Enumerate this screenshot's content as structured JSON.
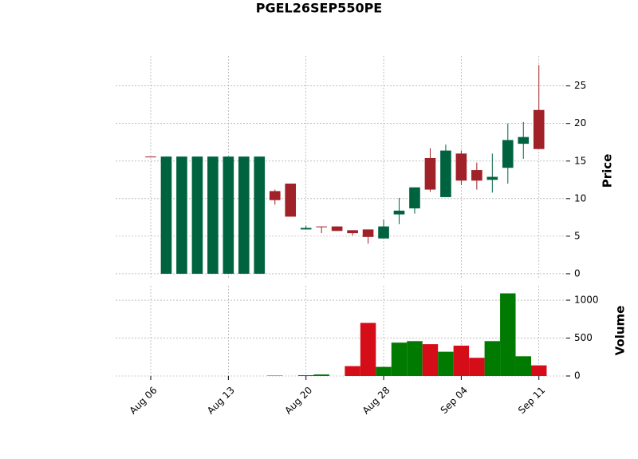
{
  "chart_data": {
    "type": "candlestick",
    "title": "PGEL26SEP550PE",
    "y_label": "Price",
    "volume_label": "Volume",
    "categories": [
      "Aug 06",
      null,
      null,
      null,
      null,
      "Aug 13",
      null,
      null,
      null,
      null,
      "Aug 20",
      null,
      null,
      null,
      null,
      "Aug 28",
      null,
      null,
      null,
      null,
      "Sep 04",
      null,
      null,
      null,
      null,
      "Sep 11"
    ],
    "open": [
      15.6,
      0,
      0,
      0,
      0,
      0,
      0,
      0,
      11.0,
      12.0,
      5.9,
      6.3,
      6.3,
      5.8,
      5.9,
      4.7,
      7.9,
      8.7,
      15.4,
      10.2,
      16.0,
      13.8,
      12.5,
      14.1,
      17.3,
      21.8
    ],
    "high": [
      15.6,
      15.6,
      15.6,
      15.6,
      15.6,
      15.6,
      15.6,
      15.6,
      11.2,
      12.0,
      6.4,
      6.3,
      6.3,
      5.8,
      5.9,
      7.2,
      10.1,
      11.5,
      16.7,
      17.2,
      16.4,
      14.8,
      16.0,
      20.0,
      20.2,
      27.8
    ],
    "low": [
      15.6,
      0,
      0,
      0,
      0,
      0,
      0,
      0,
      9.2,
      7.6,
      5.9,
      5.4,
      5.7,
      5.1,
      4.0,
      4.7,
      6.6,
      8.0,
      10.9,
      10.2,
      11.8,
      11.2,
      10.8,
      12.0,
      15.3,
      16.6
    ],
    "close": [
      15.6,
      15.6,
      15.6,
      15.6,
      15.6,
      15.6,
      15.6,
      15.6,
      9.8,
      7.6,
      6.1,
      6.2,
      5.7,
      5.4,
      4.9,
      6.3,
      8.4,
      11.5,
      11.2,
      16.4,
      12.4,
      12.4,
      12.9,
      17.8,
      18.2,
      16.6
    ],
    "up_color": "#006340",
    "down_color": "#a02128",
    "volume": [
      0,
      0,
      0,
      0,
      0,
      0,
      0,
      0,
      5,
      0,
      10,
      20,
      0,
      130,
      700,
      120,
      440,
      460,
      420,
      320,
      400,
      240,
      460,
      1090,
      260,
      140
    ],
    "volume_colors": [
      "#007a00",
      "#007a00",
      "#007a00",
      "#007a00",
      "#007a00",
      "#007a00",
      "#007a00",
      "#007a00",
      "#d50d18",
      "#007a00",
      "#d50d18",
      "#007a00",
      "#007a00",
      "#d50d18",
      "#d50d18",
      "#007a00",
      "#007a00",
      "#007a00",
      "#d50d18",
      "#007a00",
      "#d50d18",
      "#d50d18",
      "#007a00",
      "#007a00",
      "#007a00",
      "#d50d18"
    ],
    "xlim": [
      -2.26,
      26.76
    ],
    "ylim": [
      -0.75,
      29.0
    ],
    "yticks": [
      0,
      5,
      10,
      15,
      20,
      25
    ],
    "volume_lim": [
      0,
      1190
    ],
    "volume_ticks": [
      0,
      500,
      1000
    ],
    "grid": true
  }
}
